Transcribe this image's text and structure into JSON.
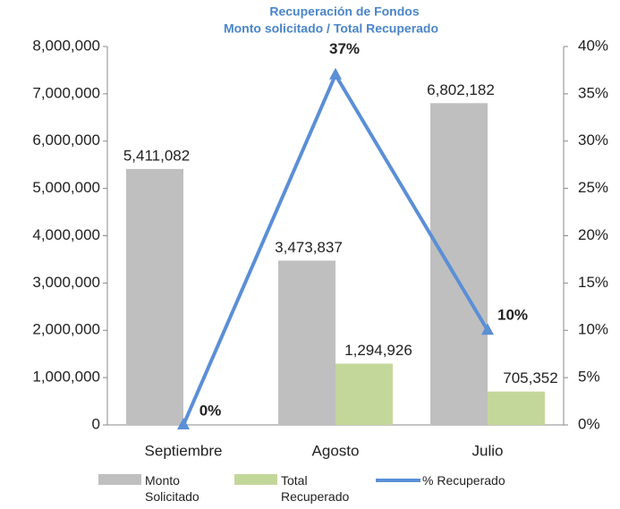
{
  "chart_data": {
    "type": "bar-line",
    "title": "Recuperación de Fondos",
    "subtitle": "Monto solicitado / Total  Recuperado",
    "categories": [
      "Septiembre",
      "Agosto",
      "Julio"
    ],
    "series": [
      {
        "name": "Monto Solicitado",
        "type": "bar",
        "color": "#bfbfbf",
        "values": [
          5411082,
          3473837,
          6802182
        ],
        "value_labels": [
          "5,411,082",
          "3,473,837",
          "6,802,182"
        ]
      },
      {
        "name": "Total Recuperado",
        "type": "bar",
        "color": "#c4d79b",
        "values": [
          null,
          1294926,
          705352
        ],
        "value_labels": [
          null,
          "1,294,926",
          "705,352"
        ]
      },
      {
        "name": "% Recuperado",
        "type": "line",
        "axis": "y2",
        "color": "#5b8fd6",
        "values": [
          0,
          37,
          10
        ],
        "value_labels": [
          "0%",
          "37%",
          "10%"
        ]
      }
    ],
    "ylim": [
      0,
      8000000
    ],
    "yticks": [
      0,
      {
        "value": 1000000,
        "label": "1,000,000"
      },
      {
        "value": 2000000,
        "label": "2,000,000"
      },
      {
        "value": 3000000,
        "label": "3,000,000"
      },
      {
        "value": 4000000,
        "label": "4,000,000"
      },
      {
        "value": 5000000,
        "label": "5,000,000"
      },
      {
        "value": 6000000,
        "label": "6,000,000"
      },
      {
        "value": 7000000,
        "label": "7,000,000"
      },
      {
        "value": 8000000,
        "label": "8,000,000"
      }
    ],
    "y2lim": [
      0,
      40
    ],
    "y2ticks": [
      {
        "value": 0,
        "label": "0%"
      },
      {
        "value": 5,
        "label": "5%"
      },
      {
        "value": 10,
        "label": "10%"
      },
      {
        "value": 15,
        "label": "15%"
      },
      {
        "value": 20,
        "label": "20%"
      },
      {
        "value": 25,
        "label": "25%"
      },
      {
        "value": 30,
        "label": "30%"
      },
      {
        "value": 35,
        "label": "35%"
      },
      {
        "value": 40,
        "label": "40%"
      }
    ],
    "legend": "bottom"
  }
}
